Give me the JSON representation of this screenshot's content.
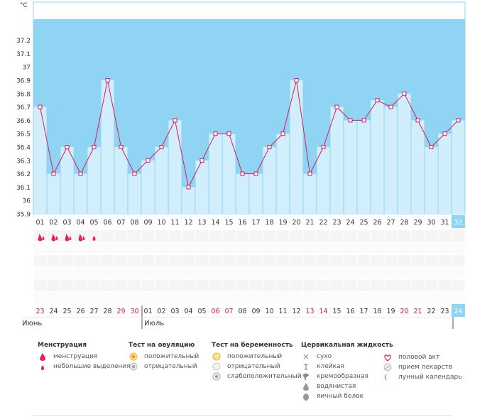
{
  "chart_data": {
    "type": "bar",
    "unit_label": "°C",
    "y_ticks": [
      "37.2",
      "37.1",
      "37",
      "36.9",
      "36.8",
      "36.7",
      "36.6",
      "36.5",
      "36.4",
      "36.3",
      "36.2",
      "36.1",
      "36",
      "35.9"
    ],
    "ylim": [
      35.9,
      37.3
    ],
    "cycle_days": [
      "01",
      "02",
      "03",
      "04",
      "05",
      "06",
      "07",
      "08",
      "09",
      "10",
      "11",
      "12",
      "13",
      "14",
      "15",
      "16",
      "17",
      "18",
      "19",
      "20",
      "21",
      "22",
      "23",
      "24",
      "25",
      "26",
      "27",
      "28",
      "29",
      "30",
      "31",
      "32"
    ],
    "values": [
      36.7,
      36.2,
      36.4,
      36.2,
      36.4,
      36.9,
      36.4,
      36.2,
      36.3,
      36.4,
      36.6,
      36.1,
      36.3,
      36.5,
      36.5,
      36.2,
      36.2,
      36.4,
      36.5,
      36.9,
      36.2,
      36.4,
      36.7,
      36.6,
      36.6,
      36.75,
      36.7,
      36.8,
      36.6,
      36.4,
      36.5,
      36.6
    ],
    "calendar_dates": [
      "23",
      "24",
      "25",
      "26",
      "27",
      "28",
      "29",
      "30",
      "01",
      "02",
      "03",
      "04",
      "05",
      "06",
      "07",
      "08",
      "09",
      "10",
      "11",
      "12",
      "13",
      "14",
      "15",
      "16",
      "17",
      "18",
      "19",
      "20",
      "21",
      "22",
      "23",
      "24"
    ],
    "weekend_indices": [
      0,
      6,
      7,
      13,
      14,
      20,
      21,
      27,
      28
    ],
    "month_labels": [
      "Июнь",
      "Июль"
    ],
    "menstruation_days": [
      {
        "day": 0,
        "level": "full"
      },
      {
        "day": 1,
        "level": "full"
      },
      {
        "day": 2,
        "level": "full"
      },
      {
        "day": 3,
        "level": "full"
      },
      {
        "day": 4,
        "level": "light"
      }
    ],
    "highlight_day_index": 31,
    "colors": {
      "band": "#8fd4f2",
      "bar": "#d0eefc",
      "bar_edge": "#ffffff",
      "line": "#d81b60",
      "marker_fill": "#ffffff",
      "highlight": "#8fd4f2",
      "weekend_text": "#d81b60",
      "text": "#333333",
      "drop": "#e91e63"
    }
  },
  "legend": {
    "menstruation": {
      "title": "Менструация",
      "items": [
        {
          "icon": "drop-full",
          "label": "менструация"
        },
        {
          "icon": "drop-light",
          "label": "небольшие выделения"
        }
      ]
    },
    "ovulation": {
      "title": "Тест на овуляцию",
      "items": [
        {
          "icon": "circle-positive",
          "label": "положительный"
        },
        {
          "icon": "circle-negative",
          "label": "отрицательный"
        }
      ]
    },
    "pregnancy": {
      "title": "Тест на беременность",
      "items": [
        {
          "icon": "circle-positive",
          "label": "положительный"
        },
        {
          "icon": "circle-negative",
          "label": "отрицательный"
        },
        {
          "icon": "circle-weak",
          "label": "слабоположительный"
        }
      ]
    },
    "cervical": {
      "title": "Цервикальная жидкость",
      "items": [
        {
          "icon": "cross",
          "label": "сухо"
        },
        {
          "icon": "t-mark",
          "label": "клейкая"
        },
        {
          "icon": "cream",
          "label": "кремообразная"
        },
        {
          "icon": "drop-gray",
          "label": "водянистая"
        },
        {
          "icon": "egg",
          "label": "яичный белок"
        }
      ]
    },
    "other": {
      "items": [
        {
          "icon": "heart",
          "label": "половой акт"
        },
        {
          "icon": "pill",
          "label": "прием лекарств"
        },
        {
          "icon": "moon",
          "label": "лунный календарь"
        }
      ]
    }
  }
}
